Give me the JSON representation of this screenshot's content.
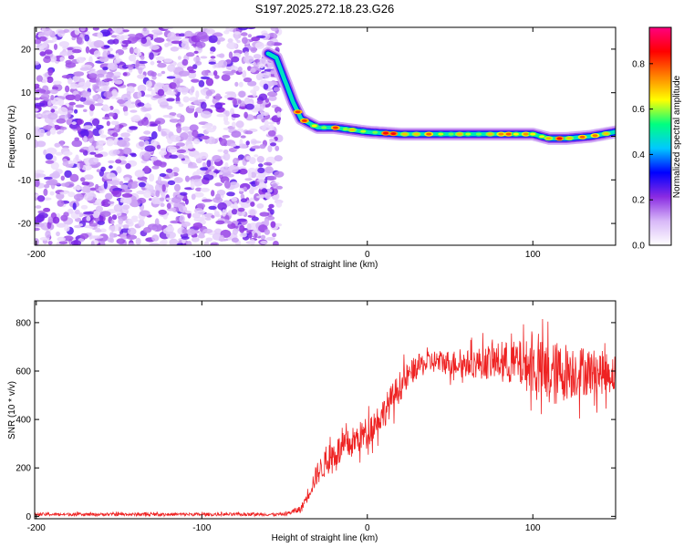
{
  "title": "S197.2025.272.18.23.G26",
  "colorbar": {
    "label": "Normalized spectral amplitude",
    "ticks": [
      "0.0",
      "0.2",
      "0.4",
      "0.6",
      "0.8"
    ],
    "tick_values": [
      0.0,
      0.2,
      0.4,
      0.6,
      0.8
    ],
    "range": [
      0,
      0.96
    ],
    "colors": [
      "#ffffff",
      "#d8b8f8",
      "#8a2be2",
      "#0000ff",
      "#00c8ff",
      "#00ff80",
      "#ffff00",
      "#ff8000",
      "#ff0000",
      "#ff0080"
    ]
  },
  "chart_data": [
    {
      "type": "heatmap",
      "xlabel": "Height of straight line (km)",
      "ylabel": "Frequency (Hz)",
      "xlim": [
        -201,
        150
      ],
      "ylim": [
        -25,
        25
      ],
      "xticks": [
        -200,
        -100,
        0,
        100
      ],
      "xtick_labels": [
        "-200",
        "-100",
        "0",
        "100"
      ],
      "yticks": [
        -20,
        -10,
        0,
        10,
        20
      ],
      "ytick_labels": [
        "-20",
        "-10",
        "0",
        "10",
        "20"
      ],
      "noise_region_x": [
        -201,
        -53
      ],
      "ridge": {
        "x": [
          -60,
          -55,
          -50,
          -45,
          -40,
          -35,
          -30,
          -20,
          -10,
          0,
          20,
          40,
          60,
          80,
          100,
          110,
          120,
          135,
          150
        ],
        "y": [
          19,
          18,
          13,
          8,
          4,
          3,
          2,
          2,
          1.5,
          1,
          0.5,
          0.5,
          0.5,
          0.5,
          0.5,
          -0.5,
          -0.5,
          0,
          1
        ],
        "peak_amplitude": 0.9
      }
    },
    {
      "type": "line",
      "xlabel": "Height of straight line (km)",
      "ylabel": "SNR (10 * v/v)",
      "xlim": [
        -201,
        150
      ],
      "ylim": [
        -10,
        890
      ],
      "xticks": [
        -200,
        -100,
        0,
        100
      ],
      "xtick_labels": [
        "-200",
        "-100",
        "0",
        "100"
      ],
      "yticks": [
        0,
        200,
        400,
        600,
        800
      ],
      "ytick_labels": [
        "0",
        "200",
        "400",
        "600",
        "800"
      ],
      "color": "#ee2222",
      "envelope": {
        "x": [
          -201,
          -50,
          -40,
          -30,
          -20,
          -10,
          0,
          10,
          20,
          30,
          40,
          60,
          80,
          100,
          110,
          120,
          130,
          150
        ],
        "mean": [
          8,
          8,
          30,
          180,
          260,
          300,
          350,
          430,
          540,
          620,
          640,
          630,
          640,
          620,
          580,
          600,
          600,
          590
        ],
        "spread": [
          8,
          8,
          20,
          60,
          80,
          80,
          80,
          80,
          80,
          60,
          60,
          70,
          100,
          140,
          180,
          150,
          130,
          100
        ]
      }
    }
  ]
}
